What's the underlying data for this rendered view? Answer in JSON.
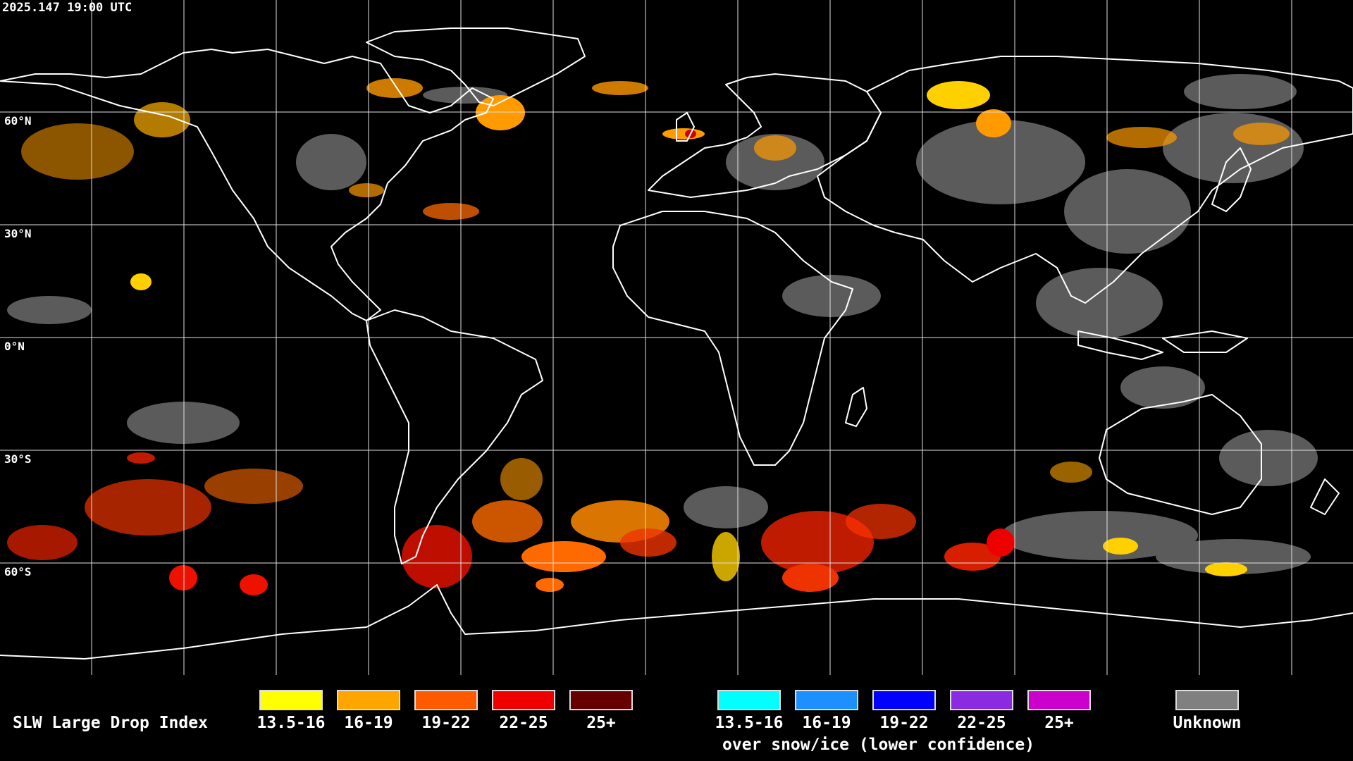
{
  "header": {
    "timestamp": "2025.147 19:00 UTC"
  },
  "map": {
    "lat_labels": [
      "60°N",
      "30°N",
      "0°N",
      "30°S",
      "60°S"
    ],
    "colors": {
      "background": "#000000",
      "grid": "#e0e0e0",
      "coast": "#ffffff"
    }
  },
  "legend": {
    "title": "SLW Large Drop Index",
    "normal": [
      {
        "label": "13.5-16",
        "color": "#ffff00"
      },
      {
        "label": "16-19",
        "color": "#ffa500"
      },
      {
        "label": "19-22",
        "color": "#ff5a00"
      },
      {
        "label": "22-25",
        "color": "#ee0000"
      },
      {
        "label": "25+",
        "color": "#660000"
      }
    ],
    "snow_ice": [
      {
        "label": "13.5-16",
        "color": "#00ffff"
      },
      {
        "label": "16-19",
        "color": "#1e8fff"
      },
      {
        "label": "19-22",
        "color": "#0000ff"
      },
      {
        "label": "22-25",
        "color": "#8a2be2"
      },
      {
        "label": "25+",
        "color": "#cc00cc"
      }
    ],
    "snow_note": "over snow/ice (lower confidence)",
    "unknown": {
      "label": "Unknown",
      "color": "#808080"
    }
  }
}
